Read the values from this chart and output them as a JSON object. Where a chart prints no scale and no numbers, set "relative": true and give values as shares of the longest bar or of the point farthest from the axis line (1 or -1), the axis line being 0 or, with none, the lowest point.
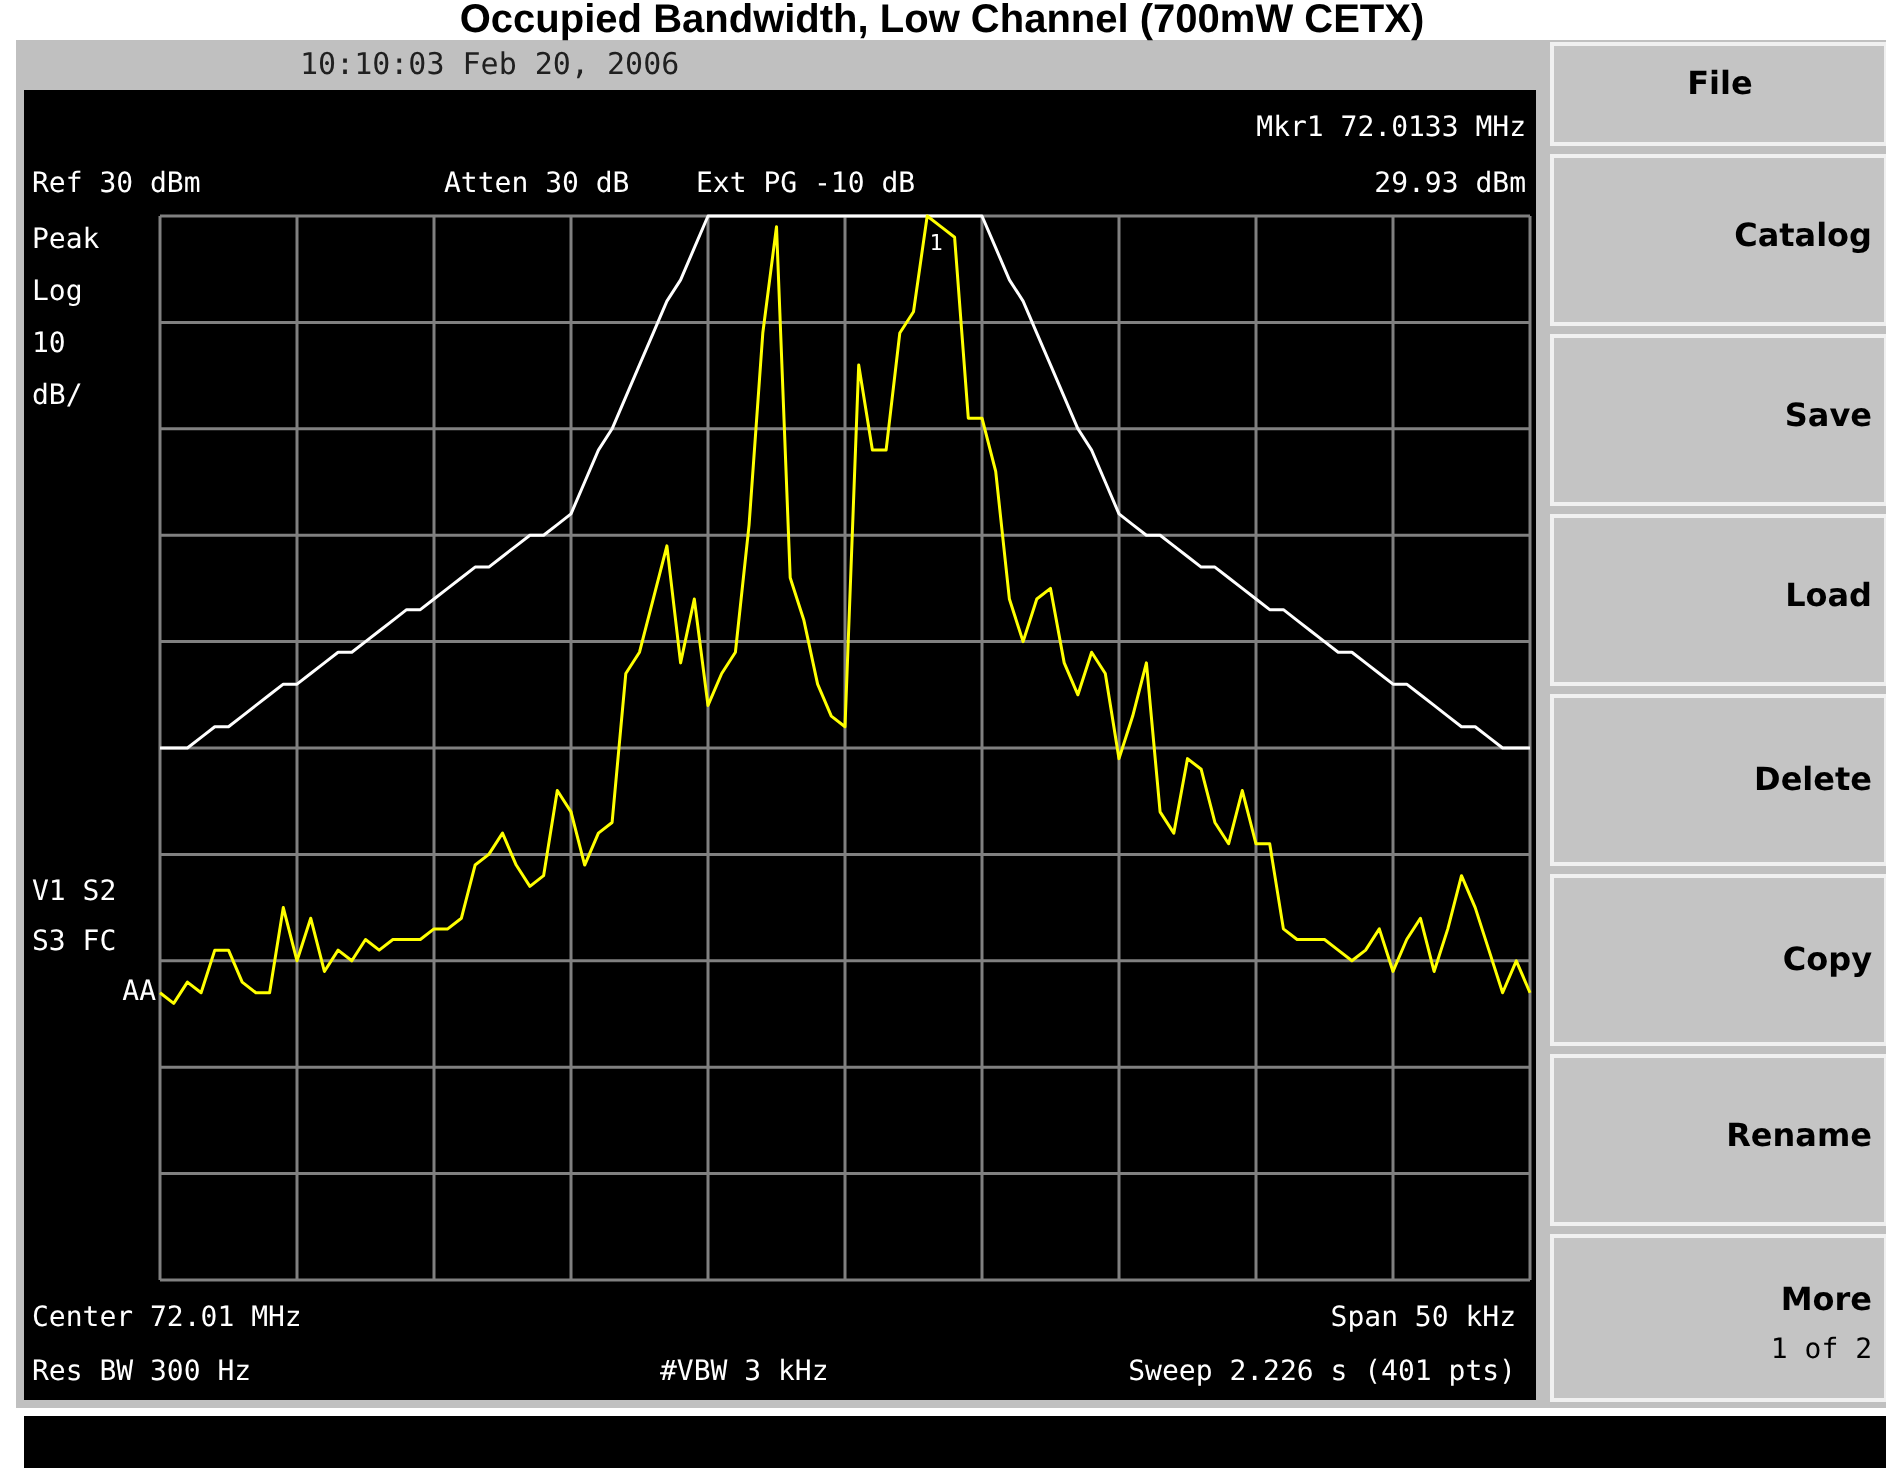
{
  "chart_data": {
    "type": "line",
    "relative": true,
    "grid": true,
    "title": "Occupied Bandwidth, Low Channel (700mW CETX)",
    "categories": [
      null,
      null,
      null,
      null,
      null,
      null,
      null,
      null,
      null,
      null,
      null,
      null,
      null,
      null,
      null,
      null,
      null,
      null,
      null,
      null,
      null,
      null,
      null,
      null,
      null,
      null,
      null,
      null,
      null,
      null,
      null,
      null,
      null,
      null,
      null,
      null,
      null,
      null,
      null,
      null,
      null,
      null,
      null,
      null,
      null,
      null,
      null,
      null,
      null,
      null,
      null,
      null,
      null,
      null,
      null,
      null,
      null,
      null,
      null,
      null,
      null,
      null,
      null,
      null,
      null,
      null,
      null,
      null,
      null,
      null,
      null,
      null,
      null,
      null,
      null,
      null,
      null,
      null,
      null,
      null,
      null,
      null,
      null,
      null,
      null,
      null,
      null,
      null,
      null,
      null,
      null,
      null,
      null,
      null,
      null,
      null,
      null,
      null,
      null,
      null,
      null
    ],
    "series": [
      {
        "color": "#ffff00",
        "values": [
          0.27,
          0.26,
          0.28,
          0.27,
          0.31,
          0.31,
          0.28,
          0.27,
          0.27,
          0.35,
          0.3,
          0.34,
          0.29,
          0.31,
          0.3,
          0.32,
          0.31,
          0.32,
          0.32,
          0.32,
          0.33,
          0.33,
          0.34,
          0.39,
          0.4,
          0.42,
          0.39,
          0.37,
          0.38,
          0.46,
          0.44,
          0.39,
          0.42,
          0.43,
          0.57,
          0.59,
          0.64,
          0.69,
          0.58,
          0.64,
          0.54,
          0.57,
          0.59,
          0.71,
          0.89,
          0.99,
          0.66,
          0.62,
          0.56,
          0.53,
          0.52,
          0.86,
          0.78,
          0.78,
          0.89,
          0.91,
          1.0,
          0.99,
          0.98,
          0.81,
          0.81,
          0.76,
          0.64,
          0.6,
          0.64,
          0.65,
          0.58,
          0.55,
          0.59,
          0.57,
          0.49,
          0.53,
          0.58,
          0.44,
          0.42,
          0.49,
          0.48,
          0.43,
          0.41,
          0.46,
          0.41,
          0.41,
          0.33,
          0.32,
          0.32,
          0.32,
          0.31,
          0.3,
          0.31,
          0.33,
          0.29,
          0.32,
          0.34,
          0.29,
          0.33,
          0.38,
          0.35,
          0.31,
          0.27,
          0.3,
          0.27
        ]
      },
      {
        "color": "#ffffff",
        "values": [
          0.5,
          0.5,
          0.5,
          0.51,
          0.52,
          0.52,
          0.53,
          0.54,
          0.55,
          0.56,
          0.56,
          0.57,
          0.58,
          0.59,
          0.59,
          0.6,
          0.61,
          0.62,
          0.63,
          0.63,
          0.64,
          0.65,
          0.66,
          0.67,
          0.67,
          0.68,
          0.69,
          0.7,
          0.7,
          0.71,
          0.72,
          0.75,
          0.78,
          0.8,
          0.83,
          0.86,
          0.89,
          0.92,
          0.94,
          0.97,
          1,
          1,
          1,
          1,
          1,
          1,
          1,
          1,
          1,
          1,
          1,
          1,
          1,
          1,
          1,
          1,
          1,
          1,
          1,
          1,
          1,
          0.97,
          0.94,
          0.92,
          0.89,
          0.86,
          0.83,
          0.8,
          0.78,
          0.75,
          0.72,
          0.71,
          0.7,
          0.7,
          0.69,
          0.68,
          0.67,
          0.67,
          0.66,
          0.65,
          0.64,
          0.63,
          0.63,
          0.62,
          0.61,
          0.6,
          0.59,
          0.59,
          0.58,
          0.57,
          0.56,
          0.56,
          0.55,
          0.54,
          0.53,
          0.52,
          0.52,
          0.51,
          0.5,
          0.5,
          0.5
        ]
      }
    ],
    "annotations": [
      "10:10:03 Feb 20, 2006",
      "Mkr1 72.0133 MHz",
      "Ref 30 dBm",
      "Atten 30 dB",
      "Ext PG -10 dB",
      "29.93 dBm",
      "Peak",
      "Log",
      "10",
      "dB/",
      "V1 S2",
      "S3 FC",
      "AA",
      "Center 72.01 MHz",
      "Span 50 kHz",
      "Res BW 300 Hz",
      "#VBW 3 kHz",
      "Sweep 2.226 s (401 pts)",
      "File",
      "Catalog",
      "Save",
      "Load",
      "Delete",
      "Copy",
      "Rename",
      "More",
      "1 of 2",
      "1"
    ]
  }
}
